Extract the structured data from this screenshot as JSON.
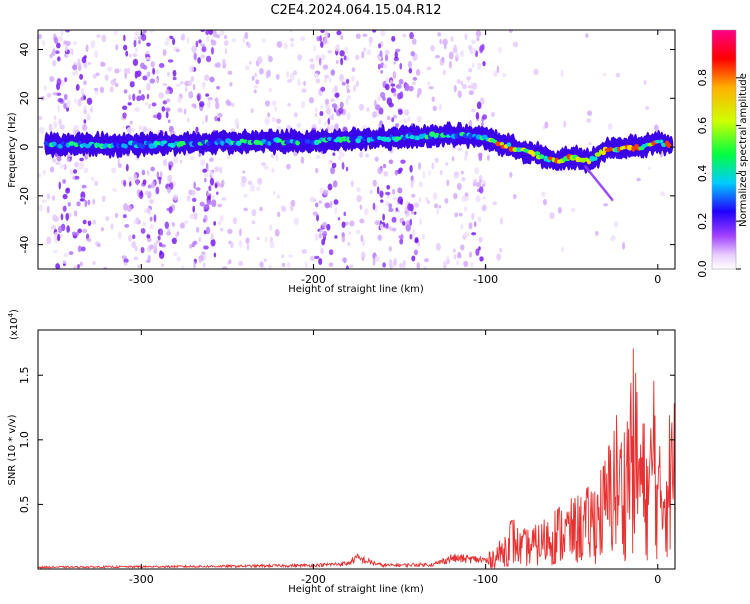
{
  "title": "C2E4.2024.064.15.04.R12",
  "chart_data": [
    {
      "type": "heatmap",
      "xlabel": "Height of straight line (km)",
      "ylabel": "Frequency (Hz)",
      "xlim": [
        -360,
        10
      ],
      "ylim": [
        -50,
        48
      ],
      "xticks": [
        -300,
        -200,
        -100,
        0
      ],
      "yticks": [
        -40,
        -20,
        0,
        20,
        40
      ],
      "colorbar": {
        "label": "Normalized spectral amplitude",
        "range": [
          0,
          1
        ],
        "ticks": [
          "0.0",
          "0.2",
          "0.4",
          "0.6",
          "0.8"
        ]
      },
      "ridge": [
        {
          "x": -350,
          "y": 1
        },
        {
          "x": -300,
          "y": 1
        },
        {
          "x": -250,
          "y": 2
        },
        {
          "x": -200,
          "y": 2.5
        },
        {
          "x": -150,
          "y": 4
        },
        {
          "x": -120,
          "y": 5
        },
        {
          "x": -100,
          "y": 4
        },
        {
          "x": -90,
          "y": 1
        },
        {
          "x": -70,
          "y": -3
        },
        {
          "x": -60,
          "y": -6
        },
        {
          "x": -50,
          "y": -4
        },
        {
          "x": -40,
          "y": -6
        },
        {
          "x": -30,
          "y": -1
        },
        {
          "x": -20,
          "y": 0
        },
        {
          "x": -10,
          "y": 0
        },
        {
          "x": 0,
          "y": 2
        },
        {
          "x": 10,
          "y": 0
        }
      ]
    },
    {
      "type": "line",
      "xlabel": "Height of straight line (km)",
      "ylabel": "SNR (10 * v/v)",
      "multiplier": "(x10",
      "multiplier_exp": "4",
      "multiplier_close": ")",
      "xlim": [
        -360,
        10
      ],
      "ylim": [
        0,
        1.85
      ],
      "xticks": [
        -300,
        -200,
        -100,
        0
      ],
      "yticks": [
        "0.5",
        "1.0",
        "1.5"
      ],
      "color": "#e83030",
      "series": [
        {
          "x": [
            -360,
            -300,
            -250,
            -200,
            -180,
            -175,
            -160,
            -130,
            -120,
            -100,
            -90,
            -85,
            -80,
            -70,
            -60,
            -50,
            -40,
            -30,
            -25,
            -20,
            -15,
            -10,
            -5,
            -2,
            0,
            5,
            10
          ],
          "y": [
            0.02,
            0.025,
            0.03,
            0.04,
            0.06,
            0.12,
            0.04,
            0.05,
            0.12,
            0.1,
            0.25,
            0.45,
            0.3,
            0.35,
            0.5,
            0.55,
            0.65,
            0.9,
            1.3,
            1.1,
            1.8,
            1.3,
            1.0,
            1.85,
            0.9,
            1.2,
            1.4
          ]
        }
      ]
    }
  ]
}
